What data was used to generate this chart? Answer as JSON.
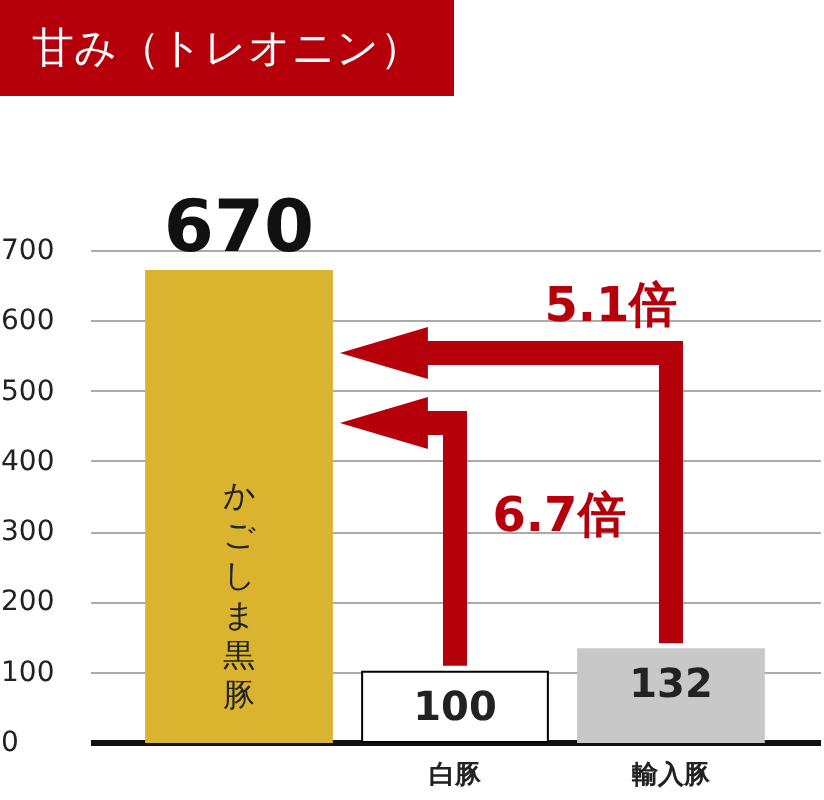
{
  "chart_data": {
    "type": "bar",
    "title": "甘み（トレオニン）",
    "categories": [
      "かごしま黒豚",
      "白豚",
      "輸入豚"
    ],
    "values": [
      670,
      100,
      132
    ],
    "colors": [
      "#dab32f",
      "#ffffff",
      "#c8c8c8"
    ],
    "ylim": [
      0,
      700
    ],
    "yticks": [
      0,
      100,
      200,
      300,
      400,
      500,
      600,
      700
    ],
    "grid": "y",
    "data_labels": true,
    "annotations": [
      "5.1倍",
      "6.7倍"
    ]
  }
}
